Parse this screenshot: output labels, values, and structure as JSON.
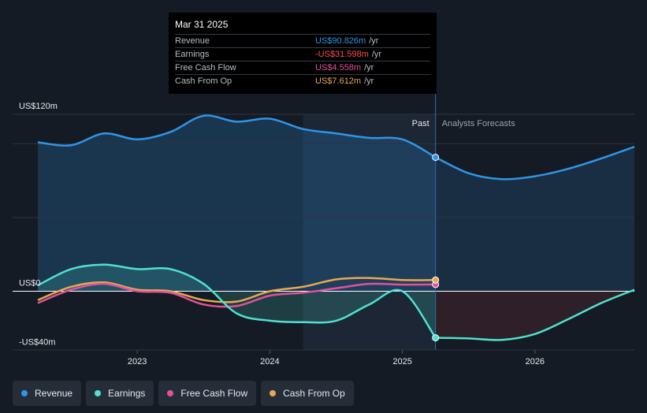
{
  "tooltip": {
    "date": "Mar 31 2025",
    "rows": [
      {
        "label": "Revenue",
        "value": "US$90.826m",
        "unit": "/yr",
        "color": "#2f95e6"
      },
      {
        "label": "Earnings",
        "value": "-US$31.598m",
        "unit": "/yr",
        "color": "#ff4d5a"
      },
      {
        "label": "Free Cash Flow",
        "value": "US$4.558m",
        "unit": "/yr",
        "color": "#e0529c"
      },
      {
        "label": "Cash From Op",
        "value": "US$7.612m",
        "unit": "/yr",
        "color": "#e8a951"
      }
    ]
  },
  "legend": [
    {
      "label": "Revenue",
      "color": "#2f95e6",
      "icon": "revenue-dot"
    },
    {
      "label": "Earnings",
      "color": "#4fe0d0",
      "icon": "earnings-dot"
    },
    {
      "label": "Free Cash Flow",
      "color": "#e0529c",
      "icon": "fcf-dot"
    },
    {
      "label": "Cash From Op",
      "color": "#e8a951",
      "icon": "cfo-dot"
    }
  ],
  "chart_data": {
    "type": "line",
    "y_tick_labels": [
      "US$120m",
      "US$0",
      "-US$40m"
    ],
    "ylim": [
      -40,
      120
    ],
    "x_ticks": [
      {
        "label": "2023",
        "x": 2023.0
      },
      {
        "label": "2024",
        "x": 2024.0
      },
      {
        "label": "2025",
        "x": 2025.0
      },
      {
        "label": "2026",
        "x": 2026.0
      }
    ],
    "past_label": "Past",
    "forecast_label": "Analysts Forecasts",
    "divider_x": 2025.25,
    "shade_start_x": 2024.25,
    "series": [
      {
        "name": "Revenue",
        "color": "#2f95e6",
        "past": [
          [
            2022.25,
            101
          ],
          [
            2022.5,
            99
          ],
          [
            2022.75,
            107
          ],
          [
            2023.0,
            103
          ],
          [
            2023.25,
            108
          ],
          [
            2023.5,
            119
          ],
          [
            2023.75,
            115
          ],
          [
            2024.0,
            117
          ],
          [
            2024.25,
            110
          ],
          [
            2024.5,
            107
          ],
          [
            2024.75,
            104
          ],
          [
            2025.0,
            103
          ],
          [
            2025.25,
            90.8
          ]
        ],
        "forecast": [
          [
            2025.25,
            90.8
          ],
          [
            2025.5,
            80
          ],
          [
            2025.75,
            76
          ],
          [
            2026.0,
            78
          ],
          [
            2026.25,
            83
          ],
          [
            2026.5,
            90
          ],
          [
            2026.75,
            98
          ]
        ]
      },
      {
        "name": "Earnings",
        "color": "#4fe0d0",
        "past": [
          [
            2022.25,
            4
          ],
          [
            2022.5,
            15
          ],
          [
            2022.75,
            18
          ],
          [
            2023.0,
            15
          ],
          [
            2023.25,
            15
          ],
          [
            2023.5,
            5
          ],
          [
            2023.75,
            -15
          ],
          [
            2024.0,
            -20
          ],
          [
            2024.25,
            -21
          ],
          [
            2024.5,
            -20
          ],
          [
            2024.75,
            -9
          ],
          [
            2025.0,
            0
          ],
          [
            2025.25,
            -31.6
          ]
        ],
        "forecast": [
          [
            2025.25,
            -31.6
          ],
          [
            2025.5,
            -32
          ],
          [
            2025.75,
            -33
          ],
          [
            2026.0,
            -29
          ],
          [
            2026.25,
            -19
          ],
          [
            2026.5,
            -8
          ],
          [
            2026.75,
            1
          ]
        ]
      },
      {
        "name": "Free Cash Flow",
        "color": "#e0529c",
        "past": [
          [
            2022.25,
            -8
          ],
          [
            2022.5,
            1
          ],
          [
            2022.75,
            5
          ],
          [
            2023.0,
            0
          ],
          [
            2023.25,
            -1
          ],
          [
            2023.5,
            -9
          ],
          [
            2023.75,
            -10
          ],
          [
            2024.0,
            -3
          ],
          [
            2024.25,
            -1
          ],
          [
            2024.5,
            2
          ],
          [
            2024.75,
            5
          ],
          [
            2025.0,
            4.5
          ],
          [
            2025.25,
            4.6
          ]
        ],
        "forecast": []
      },
      {
        "name": "Cash From Op",
        "color": "#e8a951",
        "past": [
          [
            2022.25,
            -6
          ],
          [
            2022.5,
            3
          ],
          [
            2022.75,
            6
          ],
          [
            2023.0,
            1
          ],
          [
            2023.25,
            0
          ],
          [
            2023.5,
            -6
          ],
          [
            2023.75,
            -7
          ],
          [
            2024.0,
            0
          ],
          [
            2024.25,
            3
          ],
          [
            2024.5,
            8
          ],
          [
            2024.75,
            9
          ],
          [
            2025.0,
            7.6
          ],
          [
            2025.25,
            7.6
          ]
        ],
        "forecast": []
      }
    ]
  }
}
